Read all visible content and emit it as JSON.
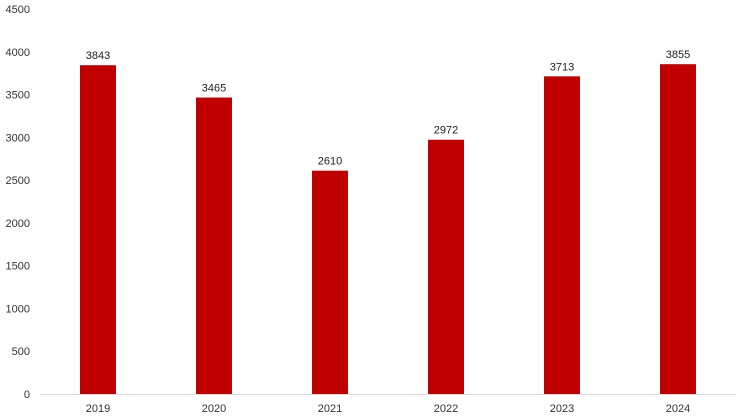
{
  "chart_data": {
    "type": "bar",
    "categories": [
      "2019",
      "2020",
      "2021",
      "2022",
      "2023",
      "2024"
    ],
    "values": [
      3843,
      3465,
      2610,
      2972,
      3713,
      3855
    ],
    "data_labels": [
      "3843",
      "3465",
      "2610",
      "2972",
      "3713",
      "3855"
    ],
    "title": "",
    "xlabel": "",
    "ylabel": "",
    "ylim": [
      0,
      4500
    ],
    "yticks": [
      "0",
      "500",
      "1000",
      "1500",
      "2000",
      "2500",
      "3000",
      "3500",
      "4000",
      "4500"
    ],
    "grid": false,
    "legend": "none",
    "bar_color": "#c00000",
    "axis_color": "#d9d9d9"
  }
}
